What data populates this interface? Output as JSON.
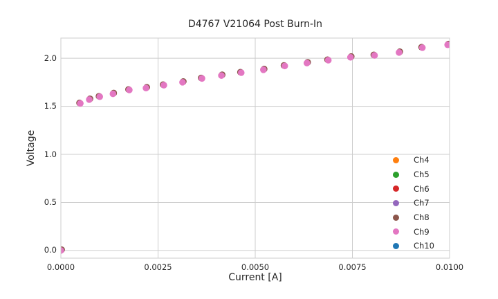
{
  "figure": {
    "title": "D4767 V21064 Post Burn-In",
    "x_axis": {
      "label": "Current [A]",
      "tick_labels": [
        "0.0000",
        "0.0025",
        "0.0050",
        "0.0075",
        "0.0100"
      ]
    },
    "y_axis": {
      "label": "Voltage",
      "tick_labels": [
        "0.0",
        "0.5",
        "1.0",
        "1.5",
        "2.0"
      ]
    },
    "legend": {
      "items": [
        {
          "label": "Ch4",
          "color": "#ff7f0e"
        },
        {
          "label": "Ch5",
          "color": "#2ca02c"
        },
        {
          "label": "Ch6",
          "color": "#d62728"
        },
        {
          "label": "Ch7",
          "color": "#9467bd"
        },
        {
          "label": "Ch8",
          "color": "#8c564b"
        },
        {
          "label": "Ch9",
          "color": "#e377c2"
        },
        {
          "label": "Ch10",
          "color": "#1f77b4"
        }
      ]
    },
    "colors": {
      "background": "#ffffff",
      "grid": "#cccccc",
      "spine": "#cccccc",
      "text": "#262626",
      "marker_top": "#e377c2",
      "marker_under": "#8c564b"
    }
  },
  "chart_data": {
    "type": "scatter",
    "title": "D4767 V21064 Post Burn-In",
    "xlabel": "Current [A]",
    "ylabel": "Voltage",
    "xlim": [
      0.0,
      0.01
    ],
    "ylim": [
      -0.08,
      2.21
    ],
    "x_ticks": [
      0.0,
      0.0025,
      0.005,
      0.0075,
      0.01
    ],
    "y_ticks": [
      0.0,
      0.5,
      1.0,
      1.5,
      2.0
    ],
    "grid": true,
    "legend_position": "lower right inside",
    "x": [
      0.0,
      0.0005,
      0.00073,
      0.001,
      0.00134,
      0.00176,
      0.00219,
      0.00265,
      0.00313,
      0.00363,
      0.00413,
      0.00464,
      0.00521,
      0.00576,
      0.00633,
      0.00688,
      0.00745,
      0.00807,
      0.0087,
      0.0093,
      0.00995
    ],
    "y": [
      0.0,
      1.53,
      1.57,
      1.6,
      1.63,
      1.67,
      1.69,
      1.72,
      1.75,
      1.79,
      1.82,
      1.85,
      1.88,
      1.92,
      1.95,
      1.98,
      2.01,
      2.03,
      2.06,
      2.11,
      2.14
    ],
    "series": [
      {
        "name": "Ch4",
        "color": "#ff7f0e"
      },
      {
        "name": "Ch5",
        "color": "#2ca02c"
      },
      {
        "name": "Ch6",
        "color": "#d62728"
      },
      {
        "name": "Ch7",
        "color": "#9467bd"
      },
      {
        "name": "Ch8",
        "color": "#8c564b"
      },
      {
        "name": "Ch9",
        "color": "#e377c2"
      },
      {
        "name": "Ch10",
        "color": "#1f77b4"
      }
    ],
    "overlap_note": "Channels Ch4-Ch10 trace nearly identical I-V points that overlap; Ch9 (pink) is drawn on top, with edges of underlying markers (mostly brown Ch8, occasionally red/purple) peeking out behind each point."
  }
}
